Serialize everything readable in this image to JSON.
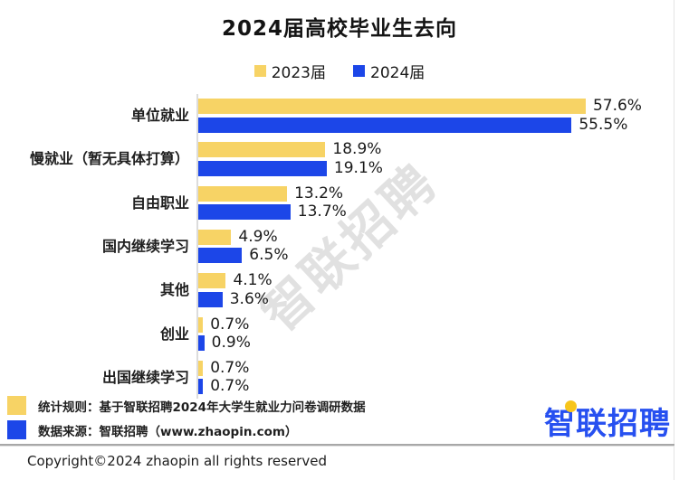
{
  "title": "2024届高校毕业生去向",
  "legend": {
    "items": [
      {
        "label": "2023届",
        "color": "#F7D365"
      },
      {
        "label": "2024届",
        "color": "#1C46E8"
      }
    ]
  },
  "chart_data": {
    "type": "bar",
    "orientation": "horizontal",
    "title": "2024届高校毕业生去向",
    "categories": [
      "单位就业",
      "慢就业（暂无具体打算）",
      "自由职业",
      "国内继续学习",
      "其他",
      "创业",
      "出国继续学习"
    ],
    "series": [
      {
        "name": "2023届",
        "color": "#F7D365",
        "values": [
          57.6,
          18.9,
          13.2,
          4.9,
          4.1,
          0.7,
          0.7
        ]
      },
      {
        "name": "2024届",
        "color": "#1C46E8",
        "values": [
          55.5,
          19.1,
          13.7,
          6.5,
          3.6,
          0.9,
          0.7
        ]
      }
    ],
    "value_suffix": "%",
    "value_labels": true,
    "xlim": [
      0,
      60
    ],
    "grid": false,
    "legend_position": "top"
  },
  "watermark": {
    "text": "智联招聘",
    "color": "#dcdcdc"
  },
  "footnotes": [
    {
      "color": "#F7D365",
      "text": "统计规则：基于智联招聘2024年大学生就业力问卷调研数据"
    },
    {
      "color": "#1C46E8",
      "text": "数据来源：智联招聘（www.zhaopin.com）"
    }
  ],
  "logo": {
    "text": "智联招聘",
    "color": "#2750F0",
    "dot_color": "#F7C51C"
  },
  "copyright": "Copyright©2024 zhaopin all rights reserved"
}
